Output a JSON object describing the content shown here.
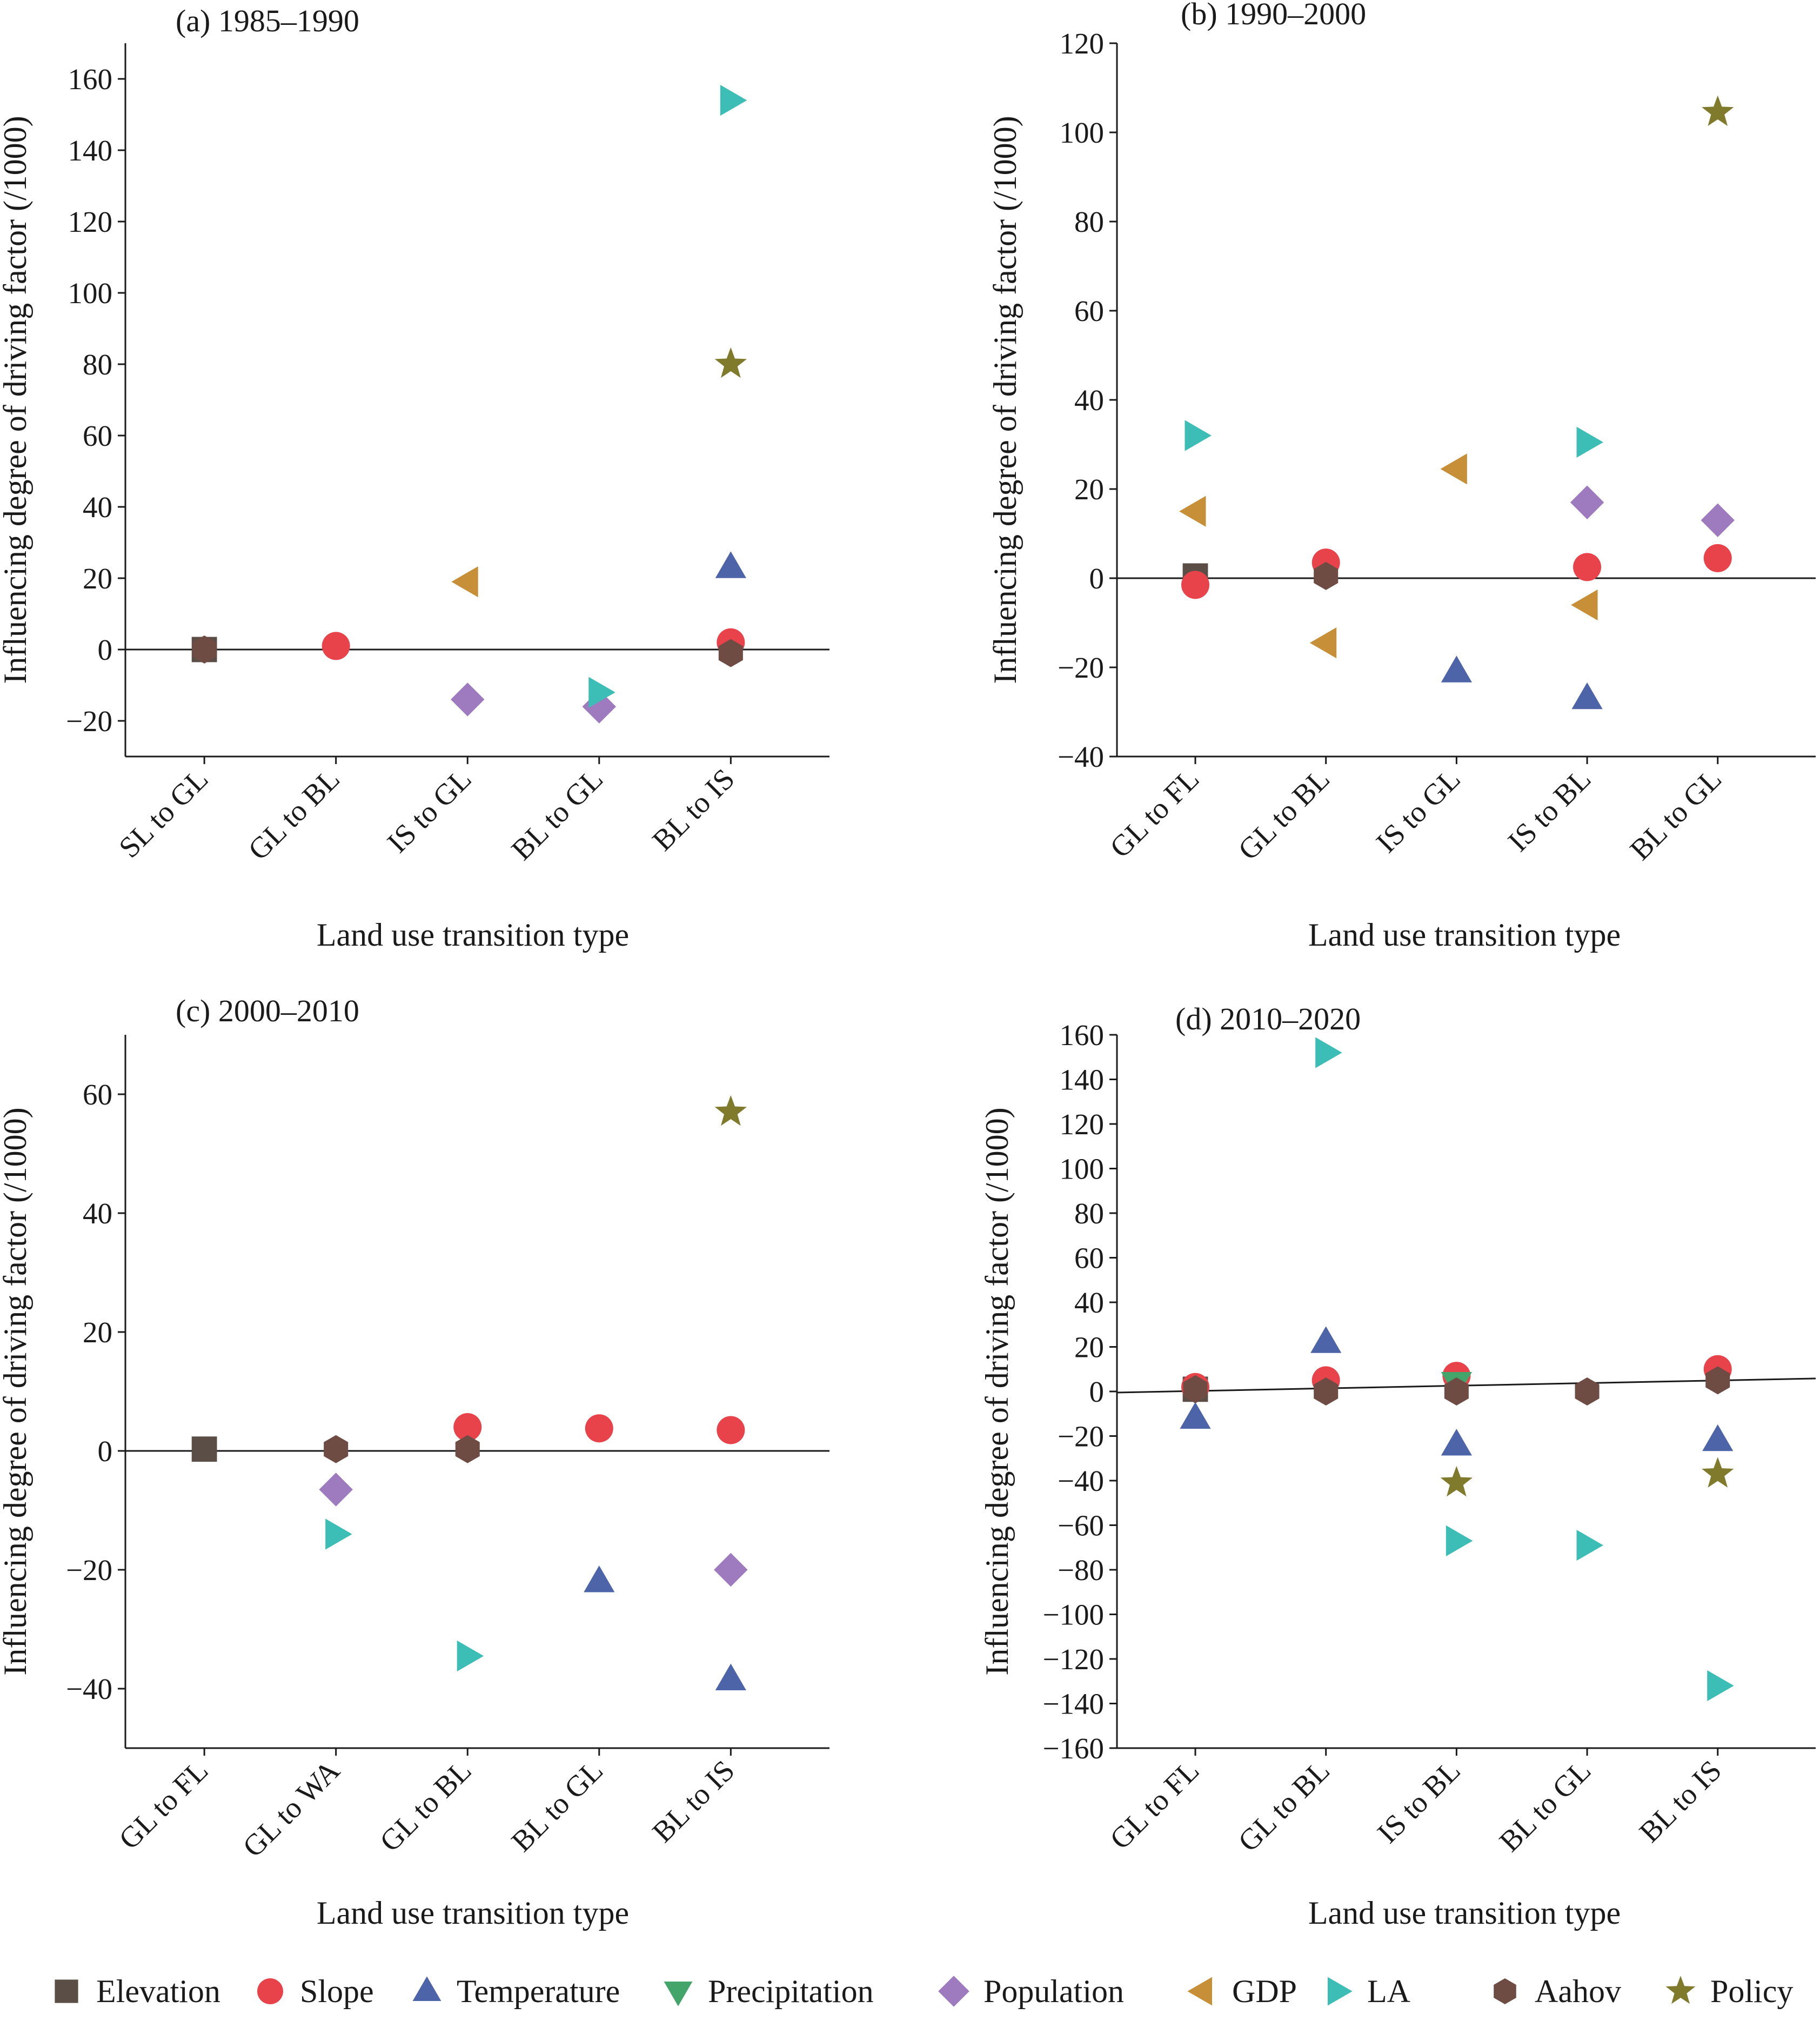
{
  "legend": [
    {
      "name": "Elevation",
      "shape": "square",
      "color": "#5b4e47"
    },
    {
      "name": "Slope",
      "shape": "circle",
      "color": "#e8434b"
    },
    {
      "name": "Temperature",
      "shape": "triangle-up",
      "color": "#4e64a8"
    },
    {
      "name": "Precipitation",
      "shape": "triangle-down",
      "color": "#44a56a"
    },
    {
      "name": "Population",
      "shape": "diamond",
      "color": "#9e7bbf"
    },
    {
      "name": "GDP",
      "shape": "triangle-left",
      "color": "#c79038"
    },
    {
      "name": "LA",
      "shape": "triangle-right",
      "color": "#3cbdb5"
    },
    {
      "name": "Aahov",
      "shape": "hexagon",
      "color": "#6e4b43"
    },
    {
      "name": "Policy",
      "shape": "star",
      "color": "#7f7a2c"
    }
  ],
  "chart_data": [
    {
      "type": "scatter",
      "title": "(a) 1985–1990",
      "xlabel": "Land use transition type",
      "ylabel": "Influencing degree of driving factor (/1000)",
      "categories": [
        "SL to GL",
        "GL to BL",
        "IS to GL",
        "BL to GL",
        "BL to IS"
      ],
      "ylim": [
        -30,
        170
      ],
      "yticks": [
        -20,
        0,
        20,
        40,
        60,
        80,
        100,
        120,
        140,
        160
      ],
      "ytick_labels": [
        "−20",
        "0",
        "20",
        "40",
        "60",
        "80",
        "100",
        "120",
        "140",
        "160"
      ],
      "series": [
        {
          "name": "Elevation",
          "values": [
            0,
            null,
            null,
            null,
            null
          ]
        },
        {
          "name": "Slope",
          "values": [
            null,
            1,
            null,
            null,
            2
          ]
        },
        {
          "name": "Temperature",
          "values": [
            null,
            null,
            null,
            null,
            23
          ]
        },
        {
          "name": "Population",
          "values": [
            null,
            null,
            -14,
            -16,
            null
          ]
        },
        {
          "name": "GDP",
          "values": [
            null,
            null,
            19,
            null,
            null
          ]
        },
        {
          "name": "LA",
          "values": [
            null,
            null,
            null,
            -12,
            154
          ]
        },
        {
          "name": "Aahov",
          "values": [
            0,
            null,
            null,
            null,
            -1
          ]
        },
        {
          "name": "Policy",
          "values": [
            null,
            null,
            null,
            null,
            80
          ]
        }
      ]
    },
    {
      "type": "scatter",
      "title": "(b) 1990–2000",
      "xlabel": "Land use transition type",
      "ylabel": "Influencing degree of driving factor (/1000)",
      "categories": [
        "GL to FL",
        "GL to BL",
        "IS to GL",
        "IS to BL",
        "BL to GL"
      ],
      "ylim": [
        -40,
        120
      ],
      "yticks": [
        -40,
        -20,
        0,
        20,
        40,
        60,
        80,
        100,
        120
      ],
      "ytick_labels": [
        "−40",
        "−20",
        "0",
        "20",
        "40",
        "60",
        "80",
        "100",
        "120"
      ],
      "series": [
        {
          "name": "Elevation",
          "values": [
            0.5,
            null,
            null,
            null,
            null
          ]
        },
        {
          "name": "Slope",
          "values": [
            -1.5,
            3.5,
            null,
            2.5,
            4.5
          ]
        },
        {
          "name": "Temperature",
          "values": [
            null,
            null,
            -21,
            -27,
            null
          ]
        },
        {
          "name": "Population",
          "values": [
            null,
            null,
            null,
            17,
            13
          ]
        },
        {
          "name": "GDP",
          "values": [
            15,
            -14.5,
            24.5,
            -6,
            null
          ]
        },
        {
          "name": "LA",
          "values": [
            32,
            null,
            null,
            30.5,
            null
          ]
        },
        {
          "name": "Aahov",
          "values": [
            null,
            0.5,
            null,
            null,
            null
          ]
        },
        {
          "name": "Policy",
          "values": [
            null,
            null,
            null,
            null,
            104.5
          ]
        }
      ]
    },
    {
      "type": "scatter",
      "title": "(c) 2000–2010",
      "xlabel": "Land use transition type",
      "ylabel": "Influencing degree of driving factor (/1000)",
      "categories": [
        "GL to FL",
        "GL to WA",
        "GL to BL",
        "BL to GL",
        "BL to IS"
      ],
      "ylim": [
        -50,
        70
      ],
      "yticks": [
        -40,
        -20,
        0,
        20,
        40,
        60
      ],
      "ytick_labels": [
        "−40",
        "−20",
        "0",
        "20",
        "40",
        "60"
      ],
      "series": [
        {
          "name": "Elevation",
          "values": [
            0.3,
            null,
            null,
            null,
            null
          ]
        },
        {
          "name": "Slope",
          "values": [
            null,
            null,
            4,
            3.8,
            3.5
          ]
        },
        {
          "name": "Temperature",
          "values": [
            null,
            null,
            null,
            -22,
            -38.5
          ]
        },
        {
          "name": "Population",
          "values": [
            null,
            -6.5,
            null,
            null,
            -20
          ]
        },
        {
          "name": "LA",
          "values": [
            null,
            -14,
            -34.5,
            null,
            null
          ]
        },
        {
          "name": "Aahov",
          "values": [
            null,
            0.3,
            0.3,
            null,
            null
          ]
        },
        {
          "name": "Policy",
          "values": [
            null,
            null,
            null,
            null,
            57
          ]
        }
      ]
    },
    {
      "type": "scatter",
      "title": "(d) 2010–2020",
      "xlabel": "Land use transition type",
      "ylabel": "Influencing degree of driving factor (/1000)",
      "categories": [
        "GL to FL",
        "GL to BL",
        "IS to BL",
        "BL to GL",
        "BL to IS"
      ],
      "ylim": [
        -160,
        160
      ],
      "yticks": [
        -160,
        -140,
        -120,
        -100,
        -80,
        -60,
        -40,
        -20,
        0,
        20,
        40,
        60,
        80,
        100,
        120,
        140,
        160
      ],
      "ytick_labels": [
        "−160",
        "−140",
        "−120",
        "−100",
        "−80",
        "−60",
        "−40",
        "−20",
        "0",
        "20",
        "40",
        "60",
        "80",
        "100",
        "120",
        "140",
        "160"
      ],
      "series": [
        {
          "name": "Elevation",
          "values": [
            1,
            null,
            null,
            null,
            null
          ]
        },
        {
          "name": "Slope",
          "values": [
            2,
            5,
            7,
            null,
            10
          ]
        },
        {
          "name": "Temperature",
          "values": [
            -12,
            22,
            -24,
            null,
            -22
          ]
        },
        {
          "name": "Precipitation",
          "values": [
            null,
            null,
            4,
            null,
            null
          ]
        },
        {
          "name": "LA",
          "values": [
            null,
            152,
            -67,
            -69,
            -132
          ]
        },
        {
          "name": "Aahov",
          "values": [
            1,
            0,
            0,
            0,
            5
          ]
        },
        {
          "name": "Policy",
          "values": [
            null,
            null,
            -41,
            null,
            -37
          ]
        }
      ]
    }
  ]
}
